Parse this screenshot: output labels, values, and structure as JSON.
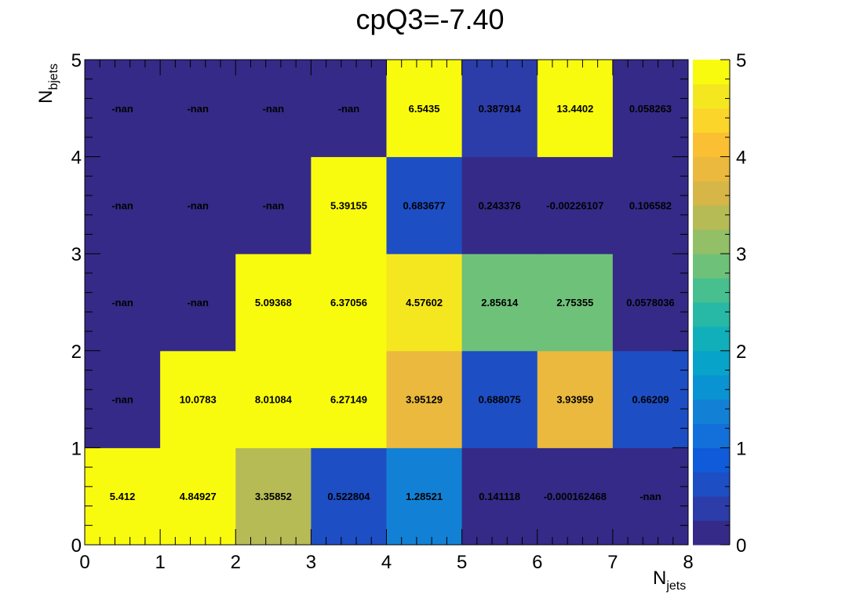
{
  "chart_data": {
    "type": "heatmap",
    "title": "cpQ3=-7.40",
    "xlabel": {
      "main": "N",
      "sub": "jets"
    },
    "ylabel": {
      "main": "N",
      "sub": "bjets"
    },
    "xlim": [
      0,
      8
    ],
    "ylim": [
      0,
      5
    ],
    "zlim": [
      0,
      5
    ],
    "x_ticks": [
      "0",
      "1",
      "2",
      "3",
      "4",
      "5",
      "6",
      "7",
      "8"
    ],
    "y_ticks": [
      "0",
      "1",
      "2",
      "3",
      "4",
      "5"
    ],
    "z_ticks": [
      "0",
      "1",
      "2",
      "3",
      "4",
      "5"
    ],
    "palette": [
      "#352a87",
      "#2c3ca8",
      "#1d4ec4",
      "#0f5bd9",
      "#1370da",
      "#1281d5",
      "#0a93d2",
      "#08a3c8",
      "#10afba",
      "#27b9a5",
      "#48bf8e",
      "#6ec179",
      "#93bf66",
      "#b6bb56",
      "#d6b647",
      "#eab93d",
      "#fbbf33",
      "#fbd52a",
      "#f5e71f",
      "#f9fb0e"
    ],
    "cells": [
      {
        "x": 0,
        "y": 0,
        "label": "5.412",
        "value": 5.412
      },
      {
        "x": 1,
        "y": 0,
        "label": "4.84927",
        "value": 4.84927
      },
      {
        "x": 2,
        "y": 0,
        "label": "3.35852",
        "value": 3.35852
      },
      {
        "x": 3,
        "y": 0,
        "label": "0.522804",
        "value": 0.522804
      },
      {
        "x": 4,
        "y": 0,
        "label": "1.28521",
        "value": 1.28521
      },
      {
        "x": 5,
        "y": 0,
        "label": "0.141118",
        "value": 0.141118
      },
      {
        "x": 6,
        "y": 0,
        "label": "-0.000162468",
        "value": -0.000162468
      },
      {
        "x": 7,
        "y": 0,
        "label": "-nan",
        "value": null
      },
      {
        "x": 0,
        "y": 1,
        "label": "-nan",
        "value": null
      },
      {
        "x": 1,
        "y": 1,
        "label": "10.0783",
        "value": 10.0783
      },
      {
        "x": 2,
        "y": 1,
        "label": "8.01084",
        "value": 8.01084
      },
      {
        "x": 3,
        "y": 1,
        "label": "6.27149",
        "value": 6.27149
      },
      {
        "x": 4,
        "y": 1,
        "label": "3.95129",
        "value": 3.95129
      },
      {
        "x": 5,
        "y": 1,
        "label": "0.688075",
        "value": 0.688075
      },
      {
        "x": 6,
        "y": 1,
        "label": "3.93959",
        "value": 3.93959
      },
      {
        "x": 7,
        "y": 1,
        "label": "0.66209",
        "value": 0.66209
      },
      {
        "x": 0,
        "y": 2,
        "label": "-nan",
        "value": null
      },
      {
        "x": 1,
        "y": 2,
        "label": "-nan",
        "value": null
      },
      {
        "x": 2,
        "y": 2,
        "label": "5.09368",
        "value": 5.09368
      },
      {
        "x": 3,
        "y": 2,
        "label": "6.37056",
        "value": 6.37056
      },
      {
        "x": 4,
        "y": 2,
        "label": "4.57602",
        "value": 4.57602
      },
      {
        "x": 5,
        "y": 2,
        "label": "2.85614",
        "value": 2.85614
      },
      {
        "x": 6,
        "y": 2,
        "label": "2.75355",
        "value": 2.75355
      },
      {
        "x": 7,
        "y": 2,
        "label": "0.0578036",
        "value": 0.0578036
      },
      {
        "x": 0,
        "y": 3,
        "label": "-nan",
        "value": null
      },
      {
        "x": 1,
        "y": 3,
        "label": "-nan",
        "value": null
      },
      {
        "x": 2,
        "y": 3,
        "label": "-nan",
        "value": null
      },
      {
        "x": 3,
        "y": 3,
        "label": "5.39155",
        "value": 5.39155
      },
      {
        "x": 4,
        "y": 3,
        "label": "0.683677",
        "value": 0.683677
      },
      {
        "x": 5,
        "y": 3,
        "label": "0.243376",
        "value": 0.243376
      },
      {
        "x": 6,
        "y": 3,
        "label": "-0.00226107",
        "value": -0.00226107
      },
      {
        "x": 7,
        "y": 3,
        "label": "0.106582",
        "value": 0.106582
      },
      {
        "x": 0,
        "y": 4,
        "label": "-nan",
        "value": null
      },
      {
        "x": 1,
        "y": 4,
        "label": "-nan",
        "value": null
      },
      {
        "x": 2,
        "y": 4,
        "label": "-nan",
        "value": null
      },
      {
        "x": 3,
        "y": 4,
        "label": "-nan",
        "value": null
      },
      {
        "x": 4,
        "y": 4,
        "label": "6.5435",
        "value": 6.5435
      },
      {
        "x": 5,
        "y": 4,
        "label": "0.387914",
        "value": 0.387914
      },
      {
        "x": 6,
        "y": 4,
        "label": "13.4402",
        "value": 13.4402
      },
      {
        "x": 7,
        "y": 4,
        "label": "0.058263",
        "value": 0.058263
      }
    ]
  }
}
